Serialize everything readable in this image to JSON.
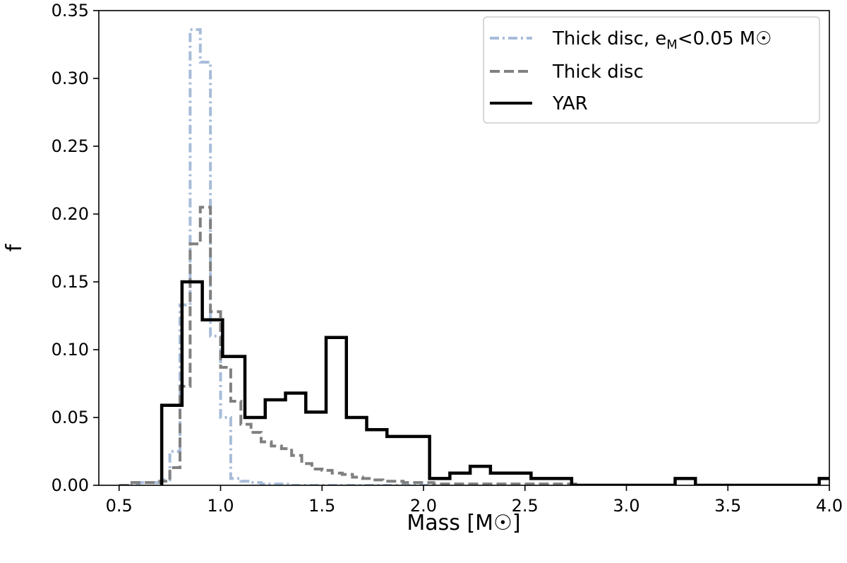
{
  "chart_data": {
    "type": "histogram-step",
    "xlabel": "Mass [M☉]",
    "ylabel": "f",
    "xlim": [
      0.4,
      4.0
    ],
    "ylim": [
      0.0,
      0.35
    ],
    "xticks": [
      "0.5",
      "1.0",
      "1.5",
      "2.0",
      "2.5",
      "3.0",
      "3.5",
      "4.0"
    ],
    "yticks": [
      "0.00",
      "0.05",
      "0.10",
      "0.15",
      "0.20",
      "0.25",
      "0.30",
      "0.35"
    ],
    "grid": false,
    "legend_position": "top-right",
    "series": [
      {
        "name": "Thick disc, e",
        "name_sub": "M",
        "name_suffix": "<0.05 M☉",
        "style": "dashdot",
        "color": "#a7bcd9",
        "bin_edges": [
          0.5,
          0.55,
          0.6,
          0.65,
          0.7,
          0.75,
          0.8,
          0.85,
          0.9,
          0.95,
          1.0,
          1.05,
          1.1,
          1.15,
          1.2,
          1.25,
          1.3,
          1.35,
          1.4,
          1.45,
          1.5,
          1.55,
          1.6,
          1.65,
          1.7,
          1.75,
          1.8,
          1.85,
          1.9,
          1.95,
          2.0,
          2.05
        ],
        "values": [
          0.0,
          0.001,
          0.002,
          0.002,
          0.004,
          0.025,
          0.133,
          0.336,
          0.312,
          0.11,
          0.05,
          0.005,
          0.003,
          0.002,
          0.001,
          0.001,
          0.001,
          0.0,
          0.0,
          0.0,
          0.0,
          0.0,
          0.0,
          0.0,
          0.0,
          0.0,
          0.0,
          0.0,
          0.0,
          0.0,
          0.0
        ]
      },
      {
        "name": "Thick disc",
        "style": "dashed",
        "color": "#808080",
        "bin_edges": [
          0.5,
          0.55,
          0.6,
          0.65,
          0.7,
          0.75,
          0.8,
          0.85,
          0.9,
          0.95,
          1.0,
          1.05,
          1.1,
          1.15,
          1.2,
          1.25,
          1.3,
          1.35,
          1.4,
          1.45,
          1.5,
          1.55,
          1.6,
          1.65,
          1.7,
          1.75,
          1.8,
          1.85,
          1.9,
          1.95,
          2.0,
          2.05,
          2.1,
          2.15,
          2.2,
          2.25,
          2.3,
          2.35,
          2.4,
          2.45,
          2.5,
          2.55,
          2.6,
          2.65,
          2.7,
          2.75
        ],
        "values": [
          0.0,
          0.002,
          0.002,
          0.002,
          0.003,
          0.013,
          0.073,
          0.178,
          0.205,
          0.128,
          0.087,
          0.062,
          0.045,
          0.039,
          0.032,
          0.029,
          0.027,
          0.022,
          0.016,
          0.012,
          0.011,
          0.009,
          0.008,
          0.006,
          0.005,
          0.004,
          0.003,
          0.003,
          0.002,
          0.002,
          0.002,
          0.001,
          0.001,
          0.001,
          0.001,
          0.001,
          0.001,
          0.001,
          0.001,
          0.001,
          0.001,
          0.001,
          0.001,
          0.001,
          0.001
        ]
      },
      {
        "name": "YAR",
        "style": "solid",
        "color": "#000000",
        "bin_edges": [
          0.71,
          0.81,
          0.91,
          1.01,
          1.12,
          1.22,
          1.32,
          1.42,
          1.52,
          1.62,
          1.72,
          1.82,
          1.92,
          2.03,
          2.13,
          2.23,
          2.33,
          2.43,
          2.53,
          2.63,
          2.73,
          2.84,
          2.94,
          3.04,
          3.14,
          3.24,
          3.34,
          3.44,
          3.54,
          3.64,
          3.75,
          3.85,
          3.95,
          4.05
        ],
        "values": [
          0.059,
          0.15,
          0.122,
          0.095,
          0.05,
          0.063,
          0.068,
          0.054,
          0.109,
          0.05,
          0.041,
          0.036,
          0.036,
          0.005,
          0.009,
          0.014,
          0.009,
          0.009,
          0.005,
          0.005,
          0.0,
          0.0,
          0.0,
          0.0,
          0.0,
          0.005,
          0.0,
          0.0,
          0.0,
          0.0,
          0.0,
          0.0,
          0.005
        ]
      }
    ]
  }
}
